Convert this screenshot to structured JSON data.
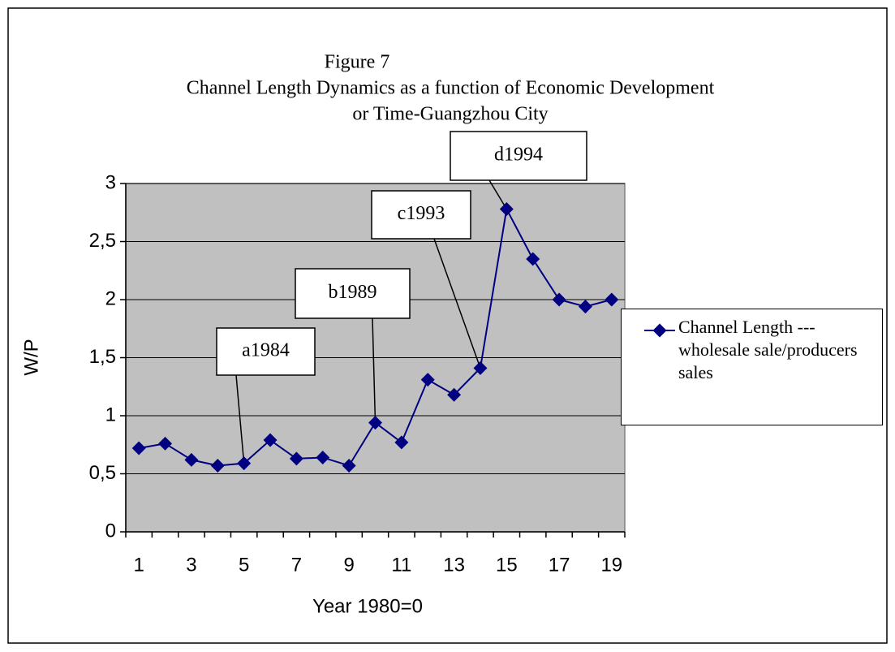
{
  "chart_data": {
    "type": "line",
    "title": "Figure 7",
    "subtitle": [
      "Channel Length Dynamics as a function of Economic Development",
      "or Time-Guangzhou City"
    ],
    "x_label": "Year 1980=0",
    "y_label": "W/P",
    "categories": [
      "1",
      null,
      "3",
      null,
      "5",
      null,
      "7",
      null,
      "9",
      null,
      "11",
      null,
      "13",
      null,
      "15",
      null,
      "17",
      null,
      "19"
    ],
    "series": [
      {
        "name": "Channel Length --- wholesale sale/producers sales",
        "color": "#000080",
        "values": [
          0.72,
          0.76,
          0.62,
          0.57,
          0.59,
          0.79,
          0.63,
          0.64,
          0.57,
          0.94,
          0.77,
          1.31,
          1.18,
          1.41,
          2.78,
          2.35,
          2.0,
          1.94,
          2.0
        ]
      }
    ],
    "ylim": [
      0,
      3
    ],
    "yticks": [
      0,
      {
        "value": 0.5,
        "label": "0,5"
      },
      1,
      {
        "value": 1.5,
        "label": "1,5"
      },
      2,
      {
        "value": 2.5,
        "label": "2,5"
      },
      3
    ],
    "grid": true,
    "plot_background": "#c0c0c0",
    "legend": "right",
    "annotations": [
      "a1984",
      "b1989",
      "c1993",
      "d1994"
    ]
  }
}
